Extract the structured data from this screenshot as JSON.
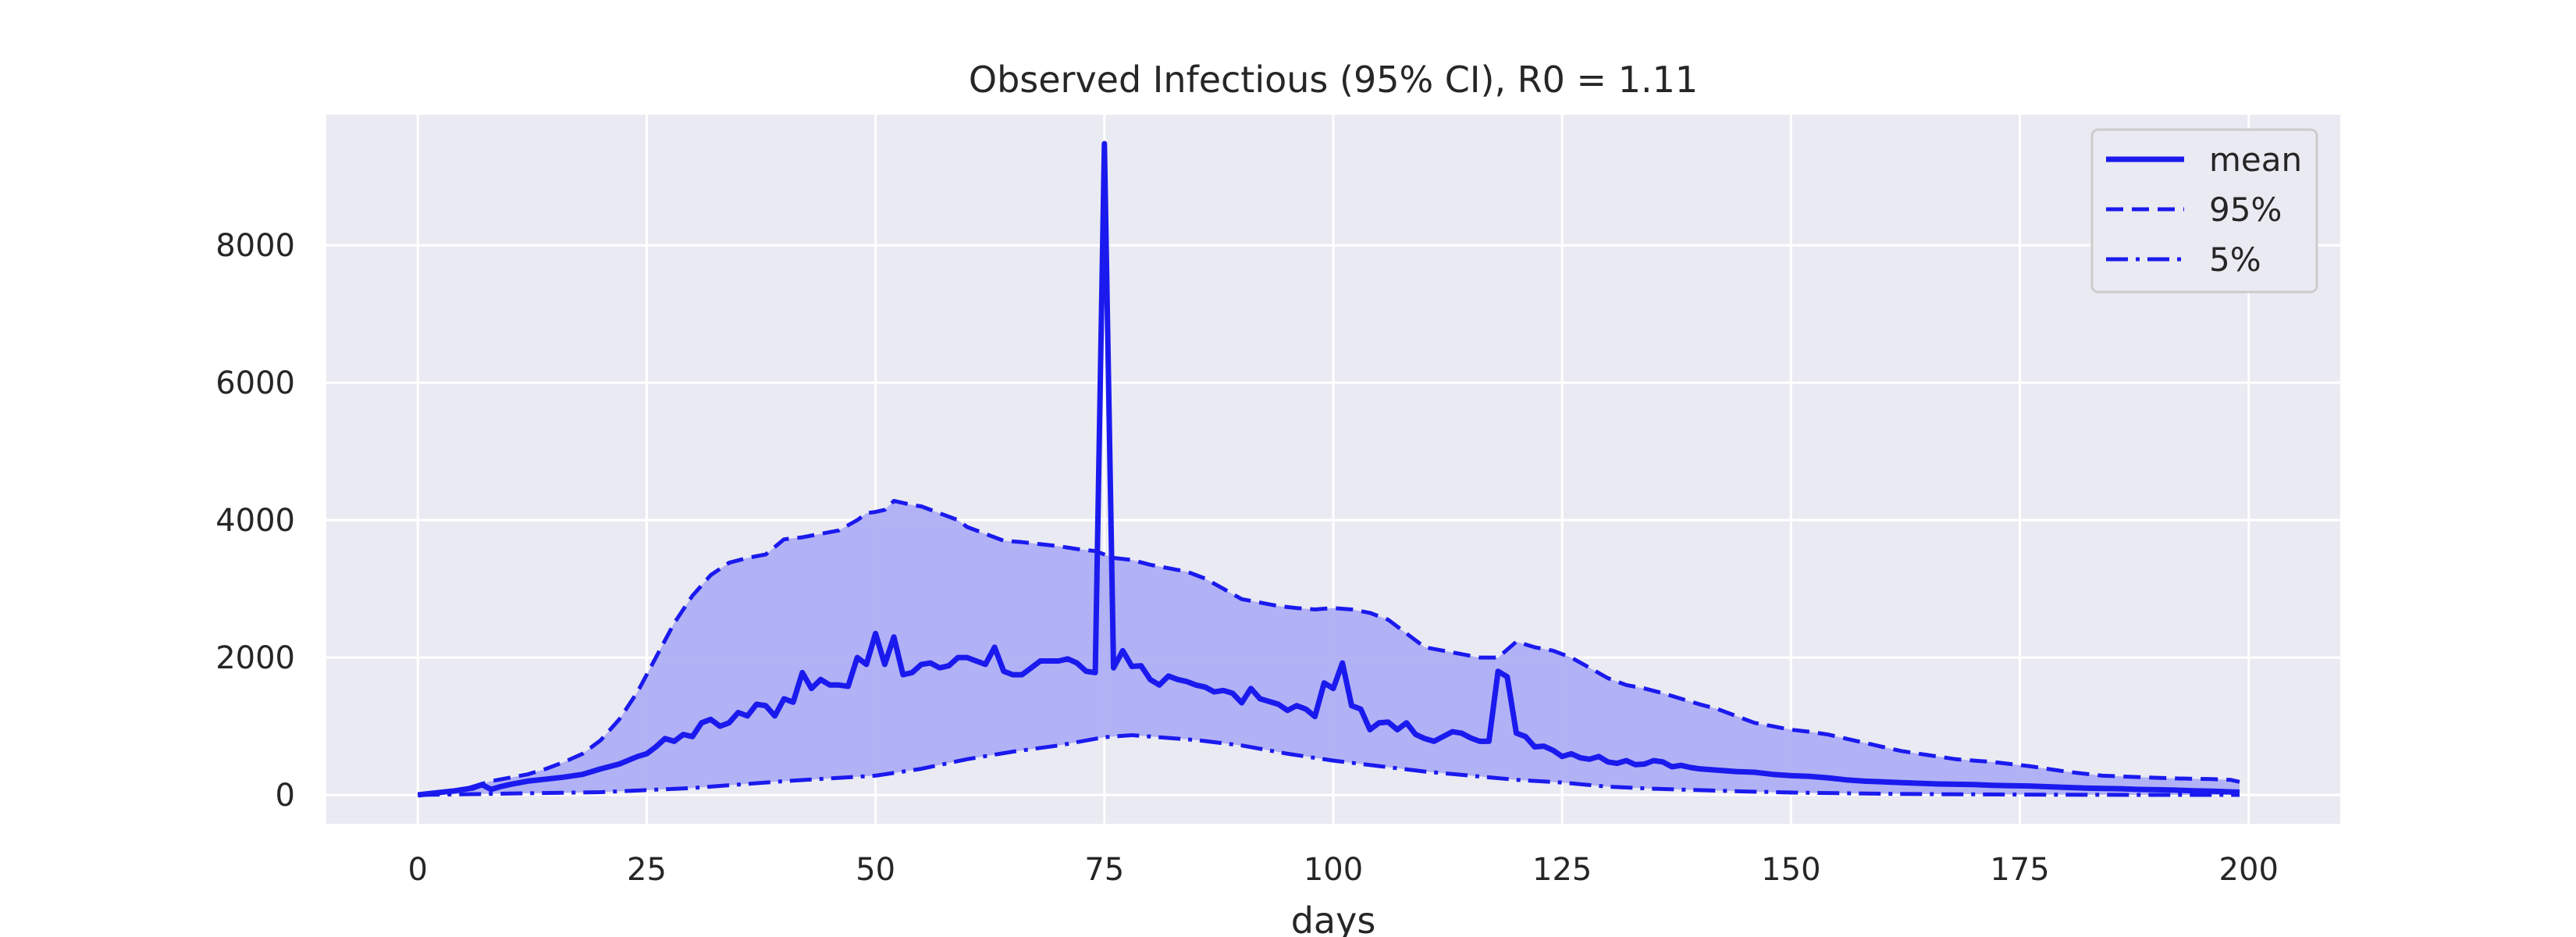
{
  "chart_data": {
    "type": "line",
    "title": "Observed Infectious (95% CI), R0 = 1.11",
    "xlabel": "days",
    "ylabel": "",
    "xlim": [
      -10,
      210
    ],
    "ylim": [
      -420,
      9900
    ],
    "xticks": [
      0,
      25,
      50,
      75,
      100,
      125,
      150,
      175,
      200
    ],
    "yticks": [
      0,
      2000,
      4000,
      6000,
      8000
    ],
    "grid": true,
    "legend_position": "top-right",
    "colors": {
      "line": "#1a1aee",
      "fill": "#aeaef4",
      "plot_background": "#eaeaf2",
      "grid": "#ffffff"
    },
    "series": [
      {
        "name": "mean",
        "style": "solid",
        "x": [
          0,
          2,
          4,
          6,
          7,
          8,
          9,
          10,
          12,
          14,
          16,
          18,
          20,
          22,
          24,
          25,
          26,
          27,
          28,
          29,
          30,
          31,
          32,
          33,
          34,
          35,
          36,
          37,
          38,
          39,
          40,
          41,
          42,
          43,
          44,
          45,
          46,
          47,
          48,
          49,
          50,
          51,
          52,
          53,
          54,
          55,
          56,
          57,
          58,
          59,
          60,
          61,
          62,
          63,
          64,
          65,
          66,
          67,
          68,
          69,
          70,
          71,
          72,
          73,
          74,
          75,
          76,
          77,
          78,
          79,
          80,
          81,
          82,
          83,
          84,
          85,
          86,
          87,
          88,
          89,
          90,
          91,
          92,
          93,
          94,
          95,
          96,
          97,
          98,
          99,
          100,
          101,
          102,
          103,
          104,
          105,
          106,
          107,
          108,
          109,
          110,
          111,
          112,
          113,
          114,
          115,
          116,
          117,
          118,
          119,
          120,
          121,
          122,
          123,
          124,
          125,
          126,
          127,
          128,
          129,
          130,
          131,
          132,
          133,
          134,
          135,
          136,
          137,
          138,
          139,
          140,
          142,
          144,
          146,
          148,
          150,
          152,
          154,
          156,
          158,
          160,
          162,
          164,
          166,
          168,
          170,
          172,
          174,
          176,
          178,
          180,
          182,
          184,
          186,
          188,
          190,
          192,
          194,
          196,
          198,
          199
        ],
        "y": [
          0,
          30,
          60,
          100,
          150,
          80,
          120,
          150,
          200,
          230,
          260,
          300,
          380,
          450,
          560,
          600,
          700,
          820,
          780,
          880,
          850,
          1050,
          1100,
          1000,
          1050,
          1200,
          1150,
          1320,
          1300,
          1150,
          1400,
          1350,
          1780,
          1550,
          1680,
          1600,
          1600,
          1580,
          2000,
          1900,
          2350,
          1900,
          2300,
          1750,
          1780,
          1900,
          1920,
          1850,
          1880,
          2000,
          2000,
          1950,
          1900,
          2150,
          1800,
          1750,
          1750,
          1850,
          1950,
          1950,
          1950,
          1980,
          1920,
          1800,
          1780,
          9480,
          1850,
          2100,
          1870,
          1880,
          1680,
          1600,
          1730,
          1680,
          1650,
          1600,
          1570,
          1500,
          1520,
          1480,
          1340,
          1550,
          1400,
          1360,
          1320,
          1230,
          1300,
          1250,
          1140,
          1630,
          1550,
          1920,
          1300,
          1250,
          950,
          1050,
          1060,
          950,
          1050,
          880,
          820,
          780,
          850,
          920,
          900,
          830,
          780,
          780,
          1800,
          1720,
          900,
          850,
          700,
          710,
          650,
          560,
          600,
          540,
          520,
          560,
          480,
          460,
          500,
          440,
          450,
          500,
          480,
          410,
          430,
          400,
          380,
          360,
          340,
          330,
          300,
          280,
          270,
          250,
          220,
          200,
          190,
          180,
          170,
          160,
          155,
          150,
          140,
          135,
          130,
          120,
          110,
          100,
          95,
          90,
          80,
          75,
          70,
          60,
          55,
          45,
          40
        ]
      },
      {
        "name": "95%",
        "style": "dashed",
        "x": [
          0,
          5,
          8,
          10,
          12,
          14,
          16,
          18,
          20,
          22,
          24,
          26,
          28,
          30,
          32,
          34,
          36,
          38,
          40,
          42,
          44,
          46,
          48,
          49,
          50,
          51,
          52,
          53,
          54,
          55,
          56,
          57,
          58,
          59,
          60,
          62,
          64,
          66,
          68,
          70,
          72,
          74,
          76,
          78,
          80,
          82,
          84,
          86,
          88,
          90,
          92,
          94,
          96,
          98,
          100,
          102,
          104,
          106,
          108,
          110,
          112,
          114,
          116,
          118,
          120,
          122,
          124,
          126,
          128,
          130,
          132,
          134,
          136,
          138,
          140,
          142,
          144,
          146,
          148,
          150,
          152,
          154,
          156,
          158,
          160,
          162,
          164,
          166,
          168,
          170,
          172,
          174,
          176,
          178,
          180,
          182,
          184,
          186,
          188,
          190,
          192,
          194,
          196,
          198,
          199
        ],
        "y": [
          0,
          80,
          200,
          250,
          300,
          380,
          480,
          600,
          800,
          1100,
          1500,
          2000,
          2500,
          2900,
          3200,
          3380,
          3450,
          3500,
          3720,
          3750,
          3800,
          3850,
          4000,
          4100,
          4120,
          4150,
          4280,
          4250,
          4220,
          4200,
          4150,
          4100,
          4050,
          4000,
          3900,
          3800,
          3700,
          3680,
          3650,
          3620,
          3580,
          3550,
          3450,
          3420,
          3350,
          3300,
          3250,
          3150,
          3000,
          2850,
          2800,
          2750,
          2720,
          2700,
          2720,
          2700,
          2650,
          2550,
          2350,
          2150,
          2100,
          2050,
          2000,
          2000,
          2230,
          2150,
          2100,
          2000,
          1850,
          1700,
          1600,
          1550,
          1480,
          1400,
          1320,
          1250,
          1150,
          1050,
          1000,
          950,
          920,
          880,
          820,
          760,
          700,
          640,
          600,
          560,
          520,
          500,
          480,
          450,
          420,
          380,
          340,
          310,
          280,
          270,
          260,
          250,
          240,
          235,
          230,
          220,
          190
        ]
      },
      {
        "name": "5%",
        "style": "dashdot",
        "x": [
          0,
          10,
          20,
          30,
          40,
          50,
          55,
          60,
          65,
          70,
          75,
          78,
          80,
          85,
          90,
          95,
          100,
          105,
          110,
          115,
          120,
          125,
          130,
          135,
          140,
          145,
          150,
          155,
          160,
          165,
          170,
          175,
          180,
          185,
          190,
          195,
          199
        ],
        "y": [
          0,
          20,
          40,
          100,
          200,
          280,
          380,
          520,
          630,
          720,
          840,
          870,
          850,
          800,
          720,
          600,
          500,
          420,
          340,
          280,
          220,
          180,
          120,
          90,
          70,
          50,
          35,
          25,
          18,
          12,
          8,
          5,
          3,
          2,
          1,
          0,
          0
        ]
      }
    ]
  }
}
